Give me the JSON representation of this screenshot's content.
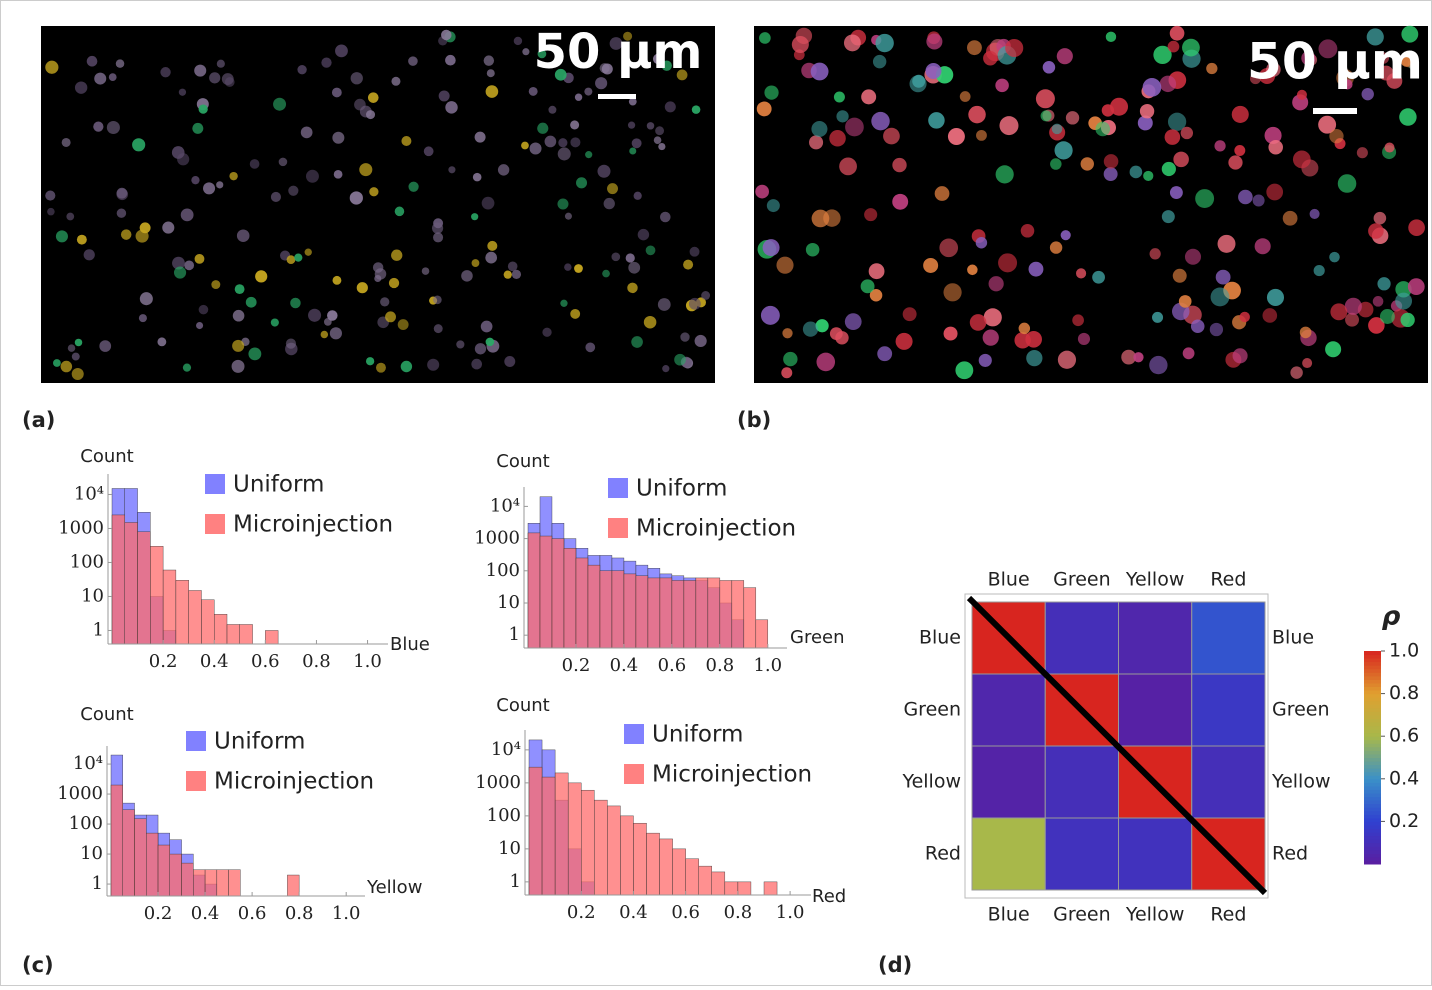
{
  "panel_labels": [
    "(a)",
    "(b)",
    "(c)",
    "(d)"
  ],
  "scale_bars": [
    "50 μm",
    "50 μm"
  ],
  "chart_data": [
    {
      "type": "histogram",
      "y_label": "Count",
      "x_label": "Blue",
      "bins": [
        0,
        0.05,
        0.1,
        0.15,
        0.2,
        0.25,
        0.3,
        0.35,
        0.4,
        0.45,
        0.5,
        0.55,
        0.6,
        0.65,
        0.7,
        0.75,
        0.8,
        0.85,
        0.9,
        0.95,
        1.0
      ],
      "series": [
        {
          "name": "Uniform",
          "color": "#6b6bff",
          "values": [
            15000,
            15000,
            3000,
            10,
            1,
            null,
            null,
            null,
            null,
            null,
            null,
            null,
            null,
            null,
            null,
            null,
            null,
            null,
            null,
            null
          ]
        },
        {
          "name": "Microinjection",
          "color": "#ff6b6b",
          "values": [
            2500,
            1500,
            800,
            300,
            60,
            30,
            15,
            8,
            3,
            1.5,
            1.5,
            null,
            1,
            null,
            null,
            null,
            null,
            null,
            null,
            null
          ]
        }
      ],
      "log_scale": true,
      "xlim": [
        0,
        1.08
      ],
      "ylim": [
        0.4,
        40000
      ],
      "xticks": [
        0.2,
        0.4,
        0.6,
        0.8,
        {
          "value": 1,
          "label": "1.0"
        }
      ],
      "yticks": [
        1,
        10,
        100,
        1000,
        {
          "value": 10000,
          "label": "10⁴"
        }
      ]
    },
    {
      "type": "histogram",
      "y_label": "Count",
      "x_label": "Green",
      "bins": [
        0,
        0.05,
        0.1,
        0.15,
        0.2,
        0.25,
        0.3,
        0.35,
        0.4,
        0.45,
        0.5,
        0.55,
        0.6,
        0.65,
        0.7,
        0.75,
        0.8,
        0.85,
        0.9,
        0.95,
        1.0
      ],
      "series": [
        {
          "name": "Uniform",
          "color": "#6b6bff",
          "values": [
            3000,
            20000,
            3000,
            1000,
            500,
            300,
            300,
            250,
            200,
            150,
            120,
            80,
            70,
            60,
            50,
            30,
            10,
            3,
            null,
            null
          ]
        },
        {
          "name": "Microinjection",
          "color": "#ff6b6b",
          "values": [
            1500,
            1200,
            1000,
            500,
            250,
            150,
            100,
            100,
            80,
            70,
            60,
            60,
            50,
            50,
            60,
            60,
            50,
            50,
            30,
            3
          ]
        }
      ],
      "log_scale": true,
      "xlim": [
        0,
        1.08
      ],
      "ylim": [
        0.4,
        40000
      ],
      "xticks": [
        0.2,
        0.4,
        0.6,
        0.8,
        {
          "value": 1,
          "label": "1.0"
        }
      ],
      "yticks": [
        1,
        10,
        100,
        1000,
        {
          "value": 10000,
          "label": "10⁴"
        }
      ]
    },
    {
      "type": "histogram",
      "y_label": "Count",
      "x_label": "Yellow",
      "bins": [
        0,
        0.05,
        0.1,
        0.15,
        0.2,
        0.25,
        0.3,
        0.35,
        0.4,
        0.45,
        0.5,
        0.55,
        0.6,
        0.65,
        0.7,
        0.75,
        0.8,
        0.85,
        0.9,
        0.95,
        1.0
      ],
      "series": [
        {
          "name": "Uniform",
          "color": "#6b6bff",
          "values": [
            20000,
            500,
            200,
            200,
            50,
            30,
            10,
            2,
            1,
            null,
            null,
            null,
            null,
            null,
            null,
            null,
            null,
            null,
            null,
            null
          ]
        },
        {
          "name": "Microinjection",
          "color": "#ff6b6b",
          "values": [
            2000,
            300,
            150,
            50,
            20,
            10,
            5,
            3,
            3,
            3,
            3,
            null,
            null,
            null,
            null,
            2,
            null,
            null,
            null,
            null
          ]
        }
      ],
      "log_scale": true,
      "xlim": [
        0,
        1.08
      ],
      "ylim": [
        0.4,
        40000
      ],
      "xticks": [
        0.2,
        0.4,
        0.6,
        0.8,
        {
          "value": 1,
          "label": "1.0"
        }
      ],
      "yticks": [
        1,
        10,
        100,
        1000,
        {
          "value": 10000,
          "label": "10⁴"
        }
      ]
    },
    {
      "type": "histogram",
      "y_label": "Count",
      "x_label": "Red",
      "bins": [
        0,
        0.05,
        0.1,
        0.15,
        0.2,
        0.25,
        0.3,
        0.35,
        0.4,
        0.45,
        0.5,
        0.55,
        0.6,
        0.65,
        0.7,
        0.75,
        0.8,
        0.85,
        0.9,
        0.95,
        1.0
      ],
      "series": [
        {
          "name": "Uniform",
          "color": "#6b6bff",
          "values": [
            20000,
            10000,
            300,
            10,
            1,
            null,
            null,
            null,
            null,
            null,
            null,
            null,
            null,
            null,
            null,
            null,
            null,
            null,
            null,
            null
          ]
        },
        {
          "name": "Microinjection",
          "color": "#ff6b6b",
          "values": [
            3000,
            1500,
            2000,
            1000,
            600,
            300,
            200,
            100,
            60,
            30,
            20,
            10,
            5,
            3,
            2,
            1,
            1,
            null,
            1,
            null
          ]
        }
      ],
      "log_scale": true,
      "xlim": [
        0,
        1.08
      ],
      "ylim": [
        0.4,
        40000
      ],
      "xticks": [
        0.2,
        0.4,
        0.6,
        0.8,
        {
          "value": 1,
          "label": "1.0"
        }
      ],
      "yticks": [
        1,
        10,
        100,
        1000,
        {
          "value": 10000,
          "label": "10⁴"
        }
      ]
    },
    {
      "type": "heatmap",
      "x_categories": [
        "Blue",
        "Green",
        "Yellow",
        "Red"
      ],
      "y_categories": [
        "Blue",
        "Green",
        "Yellow",
        "Red"
      ],
      "values": [
        [
          1,
          0.1,
          0.05,
          0.25
        ],
        [
          0.05,
          1,
          0.02,
          0.15
        ],
        [
          0.03,
          0.1,
          1,
          0.1
        ],
        [
          0.6,
          0.12,
          0.12,
          1
        ]
      ],
      "colorbar_title": "ρ",
      "clim": [
        0,
        1
      ],
      "cticks": [
        0.2,
        0.4,
        0.6,
        0.8,
        {
          "value": 1,
          "label": "1.0"
        }
      ]
    }
  ]
}
